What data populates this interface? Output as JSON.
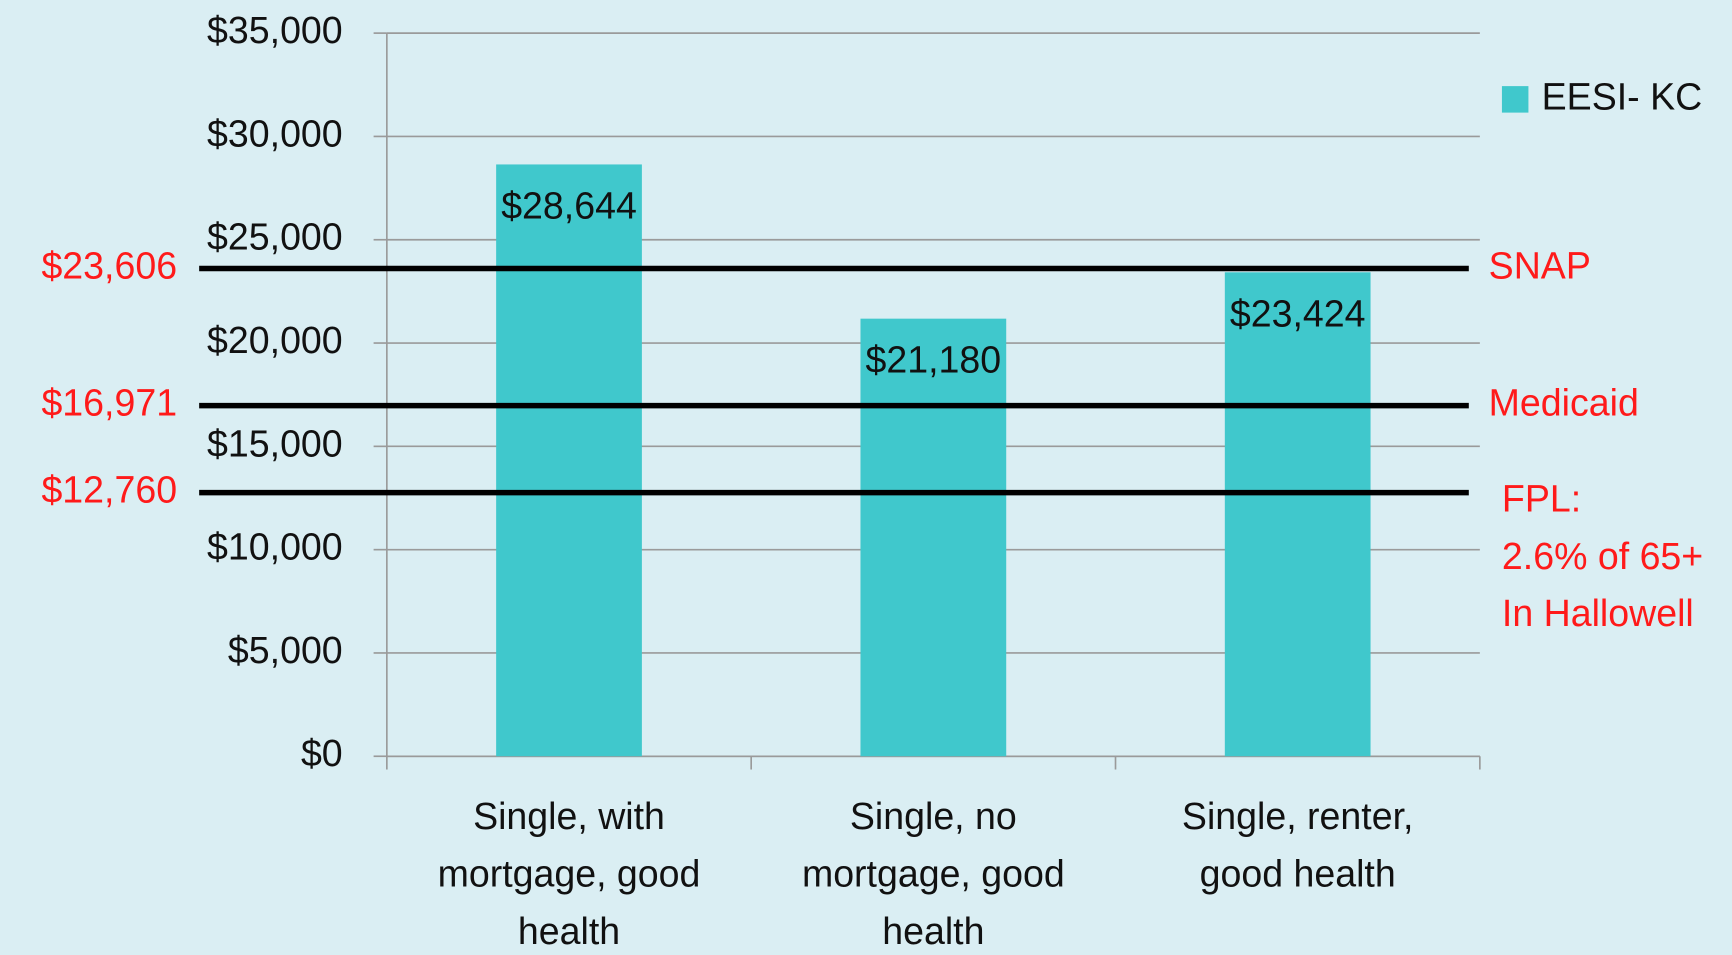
{
  "chart_data": {
    "type": "bar",
    "categories": [
      "Single, with mortgage, good health",
      "Single, no mortgage, good health",
      "Single, renter, good health"
    ],
    "series": [
      {
        "name": "EESI- KC",
        "color": "#40c8cc",
        "values": [
          28644,
          21180,
          23424
        ],
        "value_labels": [
          "$28,644",
          "$21,180",
          "$23,424"
        ]
      }
    ],
    "ylim": [
      0,
      35000
    ],
    "yticks": [
      {
        "value": 0,
        "label": "$0"
      },
      {
        "value": 5000,
        "label": "$5,000"
      },
      {
        "value": 10000,
        "label": "$10,000"
      },
      {
        "value": 15000,
        "label": "$15,000"
      },
      {
        "value": 20000,
        "label": "$20,000"
      },
      {
        "value": 25000,
        "label": "$25,000"
      },
      {
        "value": 30000,
        "label": "$30,000"
      },
      {
        "value": 35000,
        "label": "$35,000"
      }
    ],
    "grid": true,
    "legend": "top-right",
    "reference_lines": [
      {
        "name": [
          "SNAP"
        ],
        "value": 23606,
        "value_label": "$23,606"
      },
      {
        "name": [
          "Medicaid"
        ],
        "value": 16971,
        "value_label": "$16,971"
      },
      {
        "name": [
          "FPL:",
          "2.6% of 65+",
          "In Hallowell"
        ],
        "value": 12760,
        "value_label": "$12,760"
      }
    ]
  }
}
